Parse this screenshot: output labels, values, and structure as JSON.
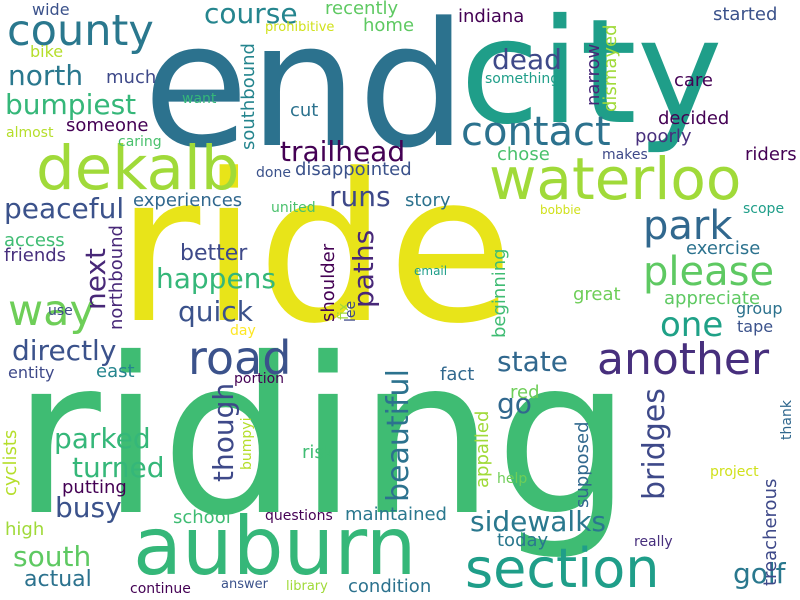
{
  "words": [
    {
      "text": "riding",
      "color": "#3fbc73"
    },
    {
      "text": "ride",
      "color": "#e8e419"
    },
    {
      "text": "end",
      "color": "#2c728e"
    },
    {
      "text": "city",
      "color": "#1f9e89"
    },
    {
      "text": "auburn",
      "color": "#35b779"
    },
    {
      "text": "waterloo",
      "color": "#a0da39"
    },
    {
      "text": "dekalb",
      "color": "#a0da39"
    },
    {
      "text": "county",
      "color": "#2a788e"
    },
    {
      "text": "road",
      "color": "#3b528b"
    },
    {
      "text": "section",
      "color": "#1f9e89"
    },
    {
      "text": "another",
      "color": "#472f7d"
    },
    {
      "text": "contact",
      "color": "#2c728e"
    },
    {
      "text": "park",
      "color": "#31688e"
    },
    {
      "text": "please",
      "color": "#5ec962"
    },
    {
      "text": "way",
      "color": "#6ece58"
    },
    {
      "text": "trailhead",
      "color": "#440154"
    },
    {
      "text": "north",
      "color": "#2a788e"
    },
    {
      "text": "bumpiest",
      "color": "#35b779"
    },
    {
      "text": "course",
      "color": "#25858e"
    },
    {
      "text": "one",
      "color": "#1fa187"
    },
    {
      "text": "dead",
      "color": "#3e4989"
    },
    {
      "text": "directly",
      "color": "#3b528b"
    },
    {
      "text": "happens",
      "color": "#35b779"
    },
    {
      "text": "quick",
      "color": "#3b528b"
    },
    {
      "text": "better",
      "color": "#3e4989"
    },
    {
      "text": "next",
      "color": "#482878"
    },
    {
      "text": "runs",
      "color": "#3e4989"
    },
    {
      "text": "paths",
      "color": "#482878"
    },
    {
      "text": "state",
      "color": "#31688e"
    },
    {
      "text": "peaceful",
      "color": "#3b528b"
    },
    {
      "text": "parked",
      "color": "#35b779"
    },
    {
      "text": "turned",
      "color": "#35b779"
    },
    {
      "text": "busy",
      "color": "#3b528b"
    },
    {
      "text": "south",
      "color": "#5ec962"
    },
    {
      "text": "actual",
      "color": "#2c728e"
    },
    {
      "text": "sidewalks",
      "color": "#2a788e"
    },
    {
      "text": "golf",
      "color": "#2a788e"
    },
    {
      "text": "beautiful",
      "color": "#2c728e"
    },
    {
      "text": "bridges",
      "color": "#3e4989"
    },
    {
      "text": "go",
      "color": "#31688e"
    },
    {
      "text": "though",
      "color": "#3e4989"
    },
    {
      "text": "recently",
      "color": "#5ec962"
    },
    {
      "text": "home",
      "color": "#5ec962"
    },
    {
      "text": "indiana",
      "color": "#440154"
    },
    {
      "text": "narrow",
      "color": "#482878"
    },
    {
      "text": "dismayed",
      "color": "#a0da39"
    },
    {
      "text": "started",
      "color": "#3b528b"
    },
    {
      "text": "prohibitive",
      "color": "#d0e11c"
    },
    {
      "text": "wide",
      "color": "#3b528b"
    },
    {
      "text": "bike",
      "color": "#b5de2b"
    },
    {
      "text": "much",
      "color": "#3e4989"
    },
    {
      "text": "something",
      "color": "#1f9e89"
    },
    {
      "text": "care",
      "color": "#440154"
    },
    {
      "text": "want",
      "color": "#35b779"
    },
    {
      "text": "cut",
      "color": "#2c728e"
    },
    {
      "text": "someone",
      "color": "#440154"
    },
    {
      "text": "almost",
      "color": "#b5de2b"
    },
    {
      "text": "caring",
      "color": "#4ac16d"
    },
    {
      "text": "southbound",
      "color": "#25858e"
    },
    {
      "text": "decided",
      "color": "#440154"
    },
    {
      "text": "poorly",
      "color": "#472f7d"
    },
    {
      "text": "chose",
      "color": "#4ac16d"
    },
    {
      "text": "makes",
      "color": "#3e4989"
    },
    {
      "text": "riders",
      "color": "#440154"
    },
    {
      "text": "done",
      "color": "#3b528b"
    },
    {
      "text": "disappointed",
      "color": "#3b528b"
    },
    {
      "text": "experiences",
      "color": "#31688e"
    },
    {
      "text": "story",
      "color": "#2c728e"
    },
    {
      "text": "bobbie",
      "color": "#d0e11c"
    },
    {
      "text": "scope",
      "color": "#1f9e89"
    },
    {
      "text": "united",
      "color": "#4ac16d"
    },
    {
      "text": "access",
      "color": "#3fbc73"
    },
    {
      "text": "friends",
      "color": "#472f7d"
    },
    {
      "text": "northbound",
      "color": "#482878"
    },
    {
      "text": "shoulder",
      "color": "#440154"
    },
    {
      "text": "fix",
      "color": "#a0da39"
    },
    {
      "text": "lee",
      "color": "#3e4989"
    },
    {
      "text": "email",
      "color": "#1f9e89"
    },
    {
      "text": "beginning",
      "color": "#3fbc73"
    },
    {
      "text": "great",
      "color": "#6ece58"
    },
    {
      "text": "exercise",
      "color": "#2c728e"
    },
    {
      "text": "appreciate",
      "color": "#5ec962"
    },
    {
      "text": "group",
      "color": "#2c728e"
    },
    {
      "text": "tape",
      "color": "#3b528b"
    },
    {
      "text": "use",
      "color": "#3e4989"
    },
    {
      "text": "day",
      "color": "#fde725"
    },
    {
      "text": "entity",
      "color": "#3e4989"
    },
    {
      "text": "east",
      "color": "#25858e"
    },
    {
      "text": "portion",
      "color": "#440154"
    },
    {
      "text": "fact",
      "color": "#31688e"
    },
    {
      "text": "red",
      "color": "#6ece58"
    },
    {
      "text": "bumpyi",
      "color": "#b5de2b"
    },
    {
      "text": "cyclists",
      "color": "#b5de2b"
    },
    {
      "text": "risk",
      "color": "#3fbc73"
    },
    {
      "text": "appalled",
      "color": "#a0da39"
    },
    {
      "text": "supposed",
      "color": "#31688e"
    },
    {
      "text": "thank",
      "color": "#31688e"
    },
    {
      "text": "project",
      "color": "#d0e11c"
    },
    {
      "text": "help",
      "color": "#6ece58"
    },
    {
      "text": "putting",
      "color": "#440154"
    },
    {
      "text": "treacherous",
      "color": "#3e4989"
    },
    {
      "text": "high",
      "color": "#a0da39"
    },
    {
      "text": "school",
      "color": "#3fbc73"
    },
    {
      "text": "questions",
      "color": "#440154"
    },
    {
      "text": "maintained",
      "color": "#2a788e"
    },
    {
      "text": "today",
      "color": "#2a788e"
    },
    {
      "text": "really",
      "color": "#472f7d"
    },
    {
      "text": "continue",
      "color": "#440154"
    },
    {
      "text": "answer",
      "color": "#3b528b"
    },
    {
      "text": "library",
      "color": "#a0da39"
    },
    {
      "text": "condition",
      "color": "#2c728e"
    }
  ]
}
